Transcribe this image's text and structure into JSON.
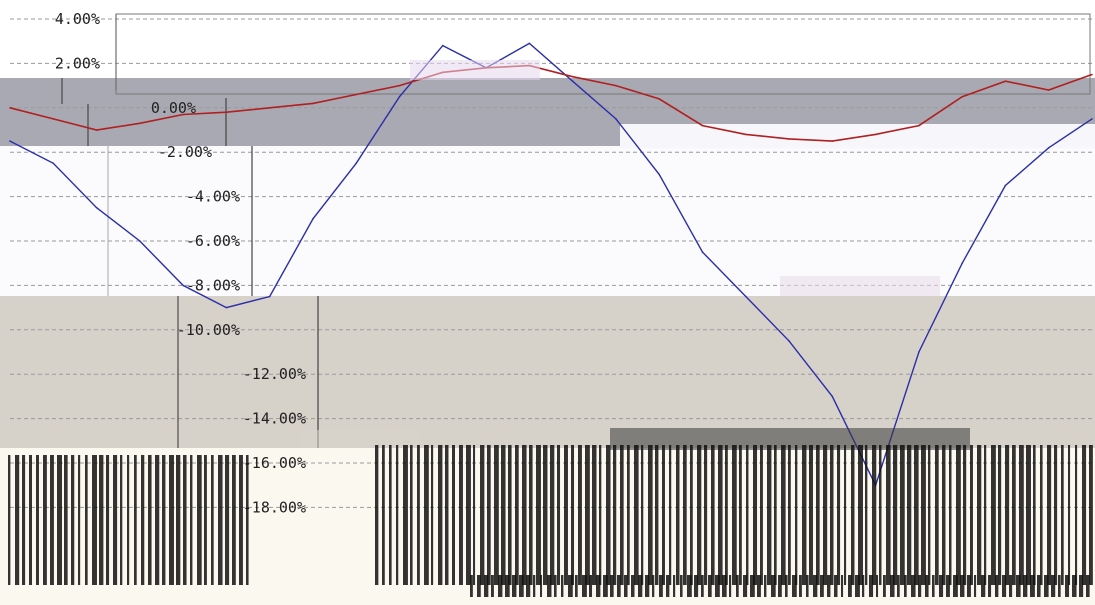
{
  "chart_data": {
    "type": "line",
    "title": "",
    "xlabel": "",
    "ylabel": "",
    "ylim": [
      -18,
      4
    ],
    "y_ticks": [
      "4.00%",
      "2.00%",
      "0.00%",
      "-2.00%",
      "-4.00%",
      "-6.00%",
      "-8.00%",
      "-10.00%",
      "-12.00%",
      "-14.00%",
      "-16.00%",
      "-18.00%"
    ],
    "y_tick_values": [
      4,
      2,
      0,
      -2,
      -4,
      -6,
      -8,
      -10,
      -12,
      -14,
      -16,
      -18
    ],
    "grid": true,
    "legend": "none",
    "series": [
      {
        "color": "#2b2fa8",
        "x": [
          0,
          4,
          8,
          12,
          16,
          20,
          24,
          28,
          32,
          36,
          40,
          44,
          48,
          52,
          56,
          60,
          64,
          68,
          72,
          76,
          80,
          84,
          88,
          92,
          96,
          100
        ],
        "values": [
          -1.5,
          -2.5,
          -4.5,
          -6.0,
          -8.0,
          -9.0,
          -8.5,
          -5.0,
          -2.5,
          0.5,
          2.8,
          1.8,
          2.9,
          1.2,
          -0.5,
          -3.0,
          -6.5,
          -8.5,
          -10.5,
          -13.0,
          -17.0,
          -11.0,
          -7.0,
          -3.5,
          -1.8,
          -0.5
        ]
      },
      {
        "color": "#b02020",
        "x": [
          0,
          4,
          8,
          12,
          16,
          20,
          24,
          28,
          32,
          36,
          40,
          44,
          48,
          52,
          56,
          60,
          64,
          68,
          72,
          76,
          80,
          84,
          88,
          92,
          96,
          100
        ],
        "values": [
          0.0,
          -0.5,
          -1.0,
          -0.7,
          -0.3,
          -0.2,
          0.0,
          0.2,
          0.6,
          1.0,
          1.6,
          1.8,
          1.9,
          1.4,
          1.0,
          0.4,
          -0.8,
          -1.2,
          -1.4,
          -1.5,
          -1.2,
          -0.8,
          0.5,
          1.2,
          0.8,
          1.5
        ]
      }
    ]
  },
  "colors": {
    "band_gray": "#a9a9b3",
    "band_tan": "#d6d1c9",
    "band_white": "#fbfbfd",
    "band_cream": "#fbf8ef",
    "grid": "#9a9a9a"
  }
}
